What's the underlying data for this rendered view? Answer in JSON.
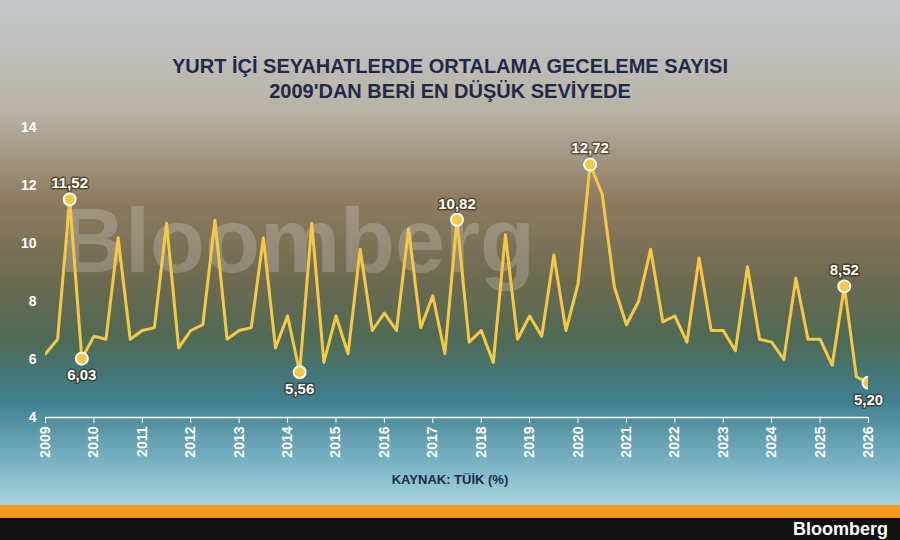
{
  "chart_data": {
    "type": "line",
    "title": "YURT İÇİ SEYAHATLERDE ORTALAMA GECELEME SAYISI",
    "subtitle": "2009'DAN BERİ EN DÜŞÜK SEVİYEDE",
    "caption": "KAYNAK: TÜİK (%)",
    "watermark": "Bloomberg",
    "footer": "Bloomberg",
    "color": "#f6c945",
    "x": [
      2009,
      2009.25,
      2009.5,
      2009.75,
      2010,
      2010.25,
      2010.5,
      2010.75,
      2011,
      2011.25,
      2011.5,
      2011.75,
      2012,
      2012.25,
      2012.5,
      2012.75,
      2013,
      2013.25,
      2013.5,
      2013.75,
      2014,
      2014.25,
      2014.5,
      2014.75,
      2015,
      2015.25,
      2015.5,
      2015.75,
      2016,
      2016.25,
      2016.5,
      2016.75,
      2017,
      2017.25,
      2017.5,
      2017.75,
      2018,
      2018.25,
      2018.5,
      2018.75,
      2019,
      2019.25,
      2019.5,
      2019.75,
      2020,
      2020.25,
      2020.5,
      2020.75,
      2021,
      2021.25,
      2021.5,
      2021.75,
      2022,
      2022.25,
      2022.5,
      2022.75,
      2023,
      2023.25,
      2023.5,
      2023.75,
      2024,
      2024.25,
      2024.5,
      2024.75,
      2025,
      2025.25,
      2025.5,
      2025.75,
      2026
    ],
    "values": [
      6.2,
      6.7,
      11.52,
      6.03,
      6.8,
      6.7,
      10.2,
      6.7,
      7.0,
      7.1,
      10.7,
      6.4,
      7.0,
      7.2,
      10.8,
      6.7,
      7.0,
      7.1,
      10.2,
      6.4,
      7.5,
      5.56,
      10.7,
      5.9,
      7.5,
      6.2,
      9.8,
      7.0,
      7.6,
      7.0,
      10.5,
      7.1,
      8.2,
      6.2,
      10.82,
      6.6,
      7.0,
      5.9,
      10.3,
      6.7,
      7.5,
      6.8,
      9.6,
      7.0,
      8.6,
      12.72,
      11.7,
      8.5,
      7.2,
      8.0,
      9.8,
      7.3,
      7.5,
      6.6,
      9.5,
      7.0,
      7.0,
      6.3,
      9.2,
      6.7,
      6.6,
      6.0,
      8.8,
      6.7,
      6.7,
      5.8,
      8.52,
      5.4,
      5.2
    ],
    "annotations": [
      {
        "x": 2009.5,
        "y": 11.52,
        "label": "11,52"
      },
      {
        "x": 2009.75,
        "y": 6.03,
        "label": "6,03"
      },
      {
        "x": 2014.25,
        "y": 5.56,
        "label": "5,56"
      },
      {
        "x": 2017.5,
        "y": 10.82,
        "label": "10,82"
      },
      {
        "x": 2020.25,
        "y": 12.72,
        "label": "12,72"
      },
      {
        "x": 2025.5,
        "y": 8.52,
        "label": "8,52"
      },
      {
        "x": 2026,
        "y": 5.2,
        "label": "5,20"
      }
    ],
    "xlim": [
      2009,
      2026
    ],
    "xticks": [
      2009,
      2010,
      2011,
      2012,
      2013,
      2014,
      2015,
      2016,
      2017,
      2018,
      2019,
      2020,
      2021,
      2022,
      2023,
      2024,
      2025,
      2026
    ],
    "ylim": [
      4,
      14
    ],
    "yticks": [
      4,
      6,
      8,
      10,
      12,
      14
    ],
    "grid": false
  }
}
